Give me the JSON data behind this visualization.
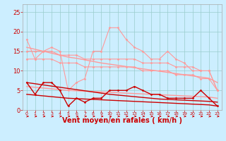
{
  "x": [
    0,
    1,
    2,
    3,
    4,
    5,
    6,
    7,
    8,
    9,
    10,
    11,
    12,
    13,
    14,
    15,
    16,
    17,
    18,
    19,
    20,
    21,
    22,
    23
  ],
  "series": [
    {
      "name": "rafales_high",
      "color": "#ff9999",
      "linewidth": 0.8,
      "marker": "D",
      "markersize": 1.5,
      "y": [
        18,
        13,
        15,
        16,
        15,
        5,
        7,
        8,
        15,
        15,
        21,
        21,
        18,
        16,
        15,
        13,
        13,
        15,
        13,
        12,
        10,
        10,
        10,
        5
      ]
    },
    {
      "name": "tendance_rose_haute",
      "color": "#ff9999",
      "linewidth": 1.0,
      "marker": null,
      "markersize": 0,
      "y": [
        16.0,
        15.5,
        15.0,
        14.5,
        14.0,
        13.5,
        13.2,
        12.8,
        12.4,
        12.0,
        11.7,
        11.4,
        11.1,
        10.8,
        10.5,
        10.2,
        9.9,
        9.6,
        9.3,
        9.0,
        8.7,
        8.4,
        8.1,
        7.0
      ]
    },
    {
      "name": "mean_high",
      "color": "#ff9999",
      "linewidth": 0.8,
      "marker": "D",
      "markersize": 1.5,
      "y": [
        15,
        15,
        15,
        15,
        14,
        14,
        14,
        13,
        13,
        13,
        13,
        13,
        13,
        13,
        12,
        12,
        12,
        12,
        11,
        11,
        11,
        10,
        10,
        5
      ]
    },
    {
      "name": "mean_mid",
      "color": "#ff9999",
      "linewidth": 0.8,
      "marker": "D",
      "markersize": 1.5,
      "y": [
        13,
        13,
        13,
        13,
        12,
        12,
        12,
        11,
        11,
        11,
        11,
        11,
        11,
        11,
        10,
        10,
        10,
        10,
        9,
        9,
        9,
        8,
        8,
        5
      ]
    },
    {
      "name": "tendance_rose_basse",
      "color": "#ff9999",
      "linewidth": 1.0,
      "marker": null,
      "markersize": 0,
      "y": [
        6.0,
        5.8,
        5.6,
        5.4,
        5.2,
        5.0,
        4.9,
        4.8,
        4.7,
        4.6,
        4.5,
        4.4,
        4.3,
        4.2,
        4.1,
        4.0,
        3.9,
        3.8,
        3.7,
        3.6,
        3.5,
        3.4,
        3.3,
        3.0
      ]
    },
    {
      "name": "vent_moyen_rouge",
      "color": "#cc0000",
      "linewidth": 1.0,
      "marker": "D",
      "markersize": 1.5,
      "y": [
        7,
        4,
        7,
        7,
        5,
        1,
        3,
        2,
        3,
        3,
        5,
        5,
        5,
        6,
        5,
        4,
        4,
        3,
        3,
        3,
        3,
        5,
        3,
        1
      ]
    },
    {
      "name": "tendance_haute",
      "color": "#cc0000",
      "linewidth": 1.0,
      "marker": null,
      "markersize": 0,
      "y": [
        7.0,
        6.7,
        6.4,
        6.1,
        5.8,
        5.5,
        5.2,
        4.9,
        4.6,
        4.3,
        4.0,
        3.8,
        3.6,
        3.4,
        3.2,
        3.0,
        2.8,
        2.7,
        2.6,
        2.5,
        2.4,
        2.3,
        2.2,
        2.0
      ]
    },
    {
      "name": "tendance_basse",
      "color": "#cc0000",
      "linewidth": 1.0,
      "marker": null,
      "markersize": 0,
      "y": [
        4.0,
        3.8,
        3.6,
        3.4,
        3.2,
        3.0,
        2.9,
        2.8,
        2.7,
        2.6,
        2.5,
        2.4,
        2.3,
        2.2,
        2.1,
        2.0,
        1.9,
        1.8,
        1.7,
        1.6,
        1.5,
        1.4,
        1.3,
        1.0
      ]
    }
  ],
  "xlabel": "Vent moyen/en rafales ( km/h )",
  "ylim": [
    0,
    27
  ],
  "xlim": [
    -0.5,
    23.5
  ],
  "yticks": [
    0,
    5,
    10,
    15,
    20,
    25
  ],
  "xticks": [
    0,
    1,
    2,
    3,
    4,
    5,
    6,
    7,
    8,
    9,
    10,
    11,
    12,
    13,
    14,
    15,
    16,
    17,
    18,
    19,
    20,
    21,
    22,
    23
  ],
  "background_color": "#cceeff",
  "grid_color": "#99cccc",
  "tick_color": "#cc0000",
  "xlabel_color": "#cc0000",
  "xlabel_fontsize": 7,
  "ytick_fontsize": 6,
  "xtick_fontsize": 4.5
}
